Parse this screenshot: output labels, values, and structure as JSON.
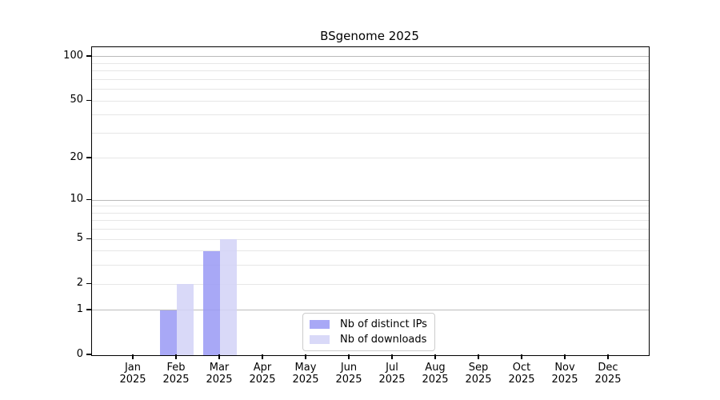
{
  "chart_data": {
    "type": "bar",
    "title": "BSgenome 2025",
    "categories": [
      "Jan",
      "Feb",
      "Mar",
      "Apr",
      "May",
      "Jun",
      "Jul",
      "Aug",
      "Sep",
      "Oct",
      "Nov",
      "Dec"
    ],
    "year": "2025",
    "series": [
      {
        "name": "Nb of distinct IPs",
        "swatch_color": "#a8a8f6",
        "fill": "rgba(153,153,244,0.85)",
        "values": [
          0,
          1,
          4,
          0,
          0,
          0,
          0,
          0,
          0,
          0,
          0,
          0
        ]
      },
      {
        "name": "Nb of downloads",
        "swatch_color": "#d9d9f8",
        "fill": "rgba(210,210,247,0.85)",
        "values": [
          0,
          2,
          5,
          0,
          0,
          0,
          0,
          0,
          0,
          0,
          0,
          0
        ]
      }
    ],
    "y_ticks": [
      0,
      1,
      2,
      5,
      10,
      20,
      50,
      100
    ],
    "y_scale": "log10(1+x)",
    "ylim": [
      0,
      117
    ],
    "grid": "horizontal",
    "grid_major_values": [
      1,
      10,
      100
    ],
    "grid_minor_values": [
      2,
      3,
      4,
      5,
      6,
      7,
      8,
      9,
      20,
      30,
      40,
      50,
      60,
      70,
      80,
      90
    ],
    "legend_position": "bottom-center"
  },
  "colors": {
    "background": "#ffffff",
    "spine": "#000000",
    "grid_major": "#bbbbbb",
    "grid_minor": "#e7e7e7",
    "text": "#000000",
    "legend_border": "#cccccc"
  }
}
